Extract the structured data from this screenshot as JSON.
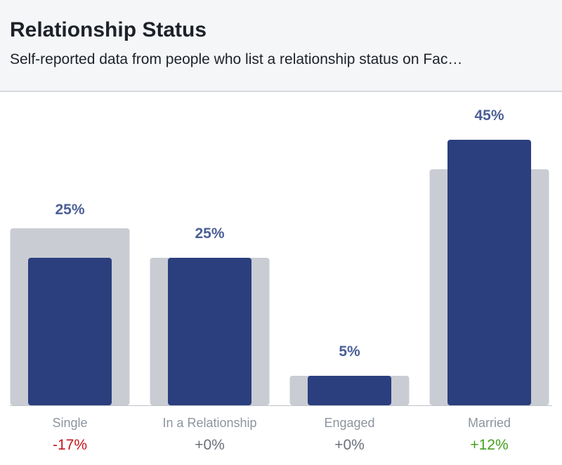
{
  "header": {
    "title": "Relationship Status",
    "subtitle": "Self-reported data from people who list a relationship status on Fac…"
  },
  "colors": {
    "bar": "#2b3f7e",
    "comparison_bar": "#c9ccd3",
    "value_label": "#4b5f96",
    "category_label": "#8d949e",
    "delta_negative": "#c4161c",
    "delta_neutral": "#6b7079",
    "delta_positive": "#43a01e",
    "baseline": "#bfc3ca"
  },
  "chart_data": {
    "type": "bar",
    "categories": [
      "Single",
      "In a Relationship",
      "Engaged",
      "Married"
    ],
    "series": [
      {
        "values": [
          25,
          25,
          5,
          45
        ]
      },
      {
        "values": [
          30,
          25,
          5,
          40
        ]
      }
    ],
    "value_labels": [
      "25%",
      "25%",
      "5%",
      "45%"
    ],
    "delta_labels": [
      "-17%",
      "+0%",
      "+0%",
      "+12%"
    ],
    "delta_signs": [
      "negative",
      "neutral",
      "neutral",
      "positive"
    ],
    "ylim": [
      0,
      50
    ]
  }
}
